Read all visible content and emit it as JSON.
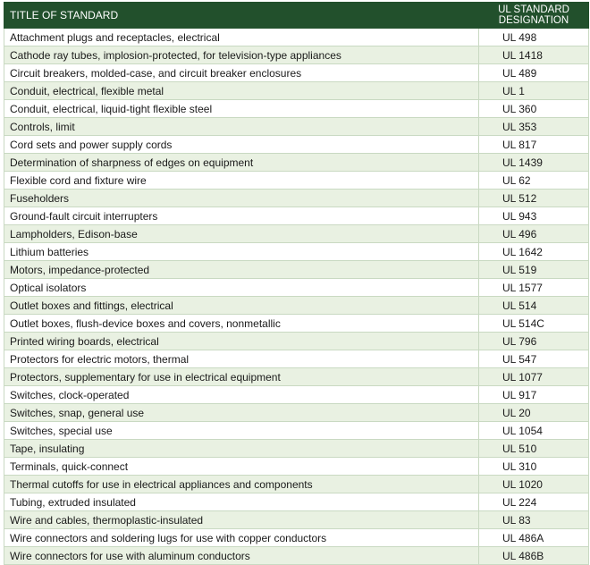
{
  "header": {
    "columns": [
      "TITLE OF STANDARD",
      "UL STANDARD DESIGNATION"
    ]
  },
  "table": {
    "rows": [
      [
        "Attachment plugs and receptacles, electrical",
        "UL 498"
      ],
      [
        "Cathode ray tubes, implosion-protected, for television-type appliances",
        "UL 1418"
      ],
      [
        "Circuit breakers, molded-case, and circuit breaker enclosures",
        "UL 489"
      ],
      [
        "Conduit, electrical, flexible metal",
        "UL 1"
      ],
      [
        "Conduit, electrical, liquid-tight flexible steel",
        "UL 360"
      ],
      [
        "Controls, limit",
        "UL 353"
      ],
      [
        "Cord sets and power supply cords",
        "UL 817"
      ],
      [
        "Determination of sharpness of edges on equipment",
        "UL 1439"
      ],
      [
        "Flexible cord and fixture wire",
        "UL 62"
      ],
      [
        "Fuseholders",
        "UL 512"
      ],
      [
        "Ground-fault circuit interrupters",
        "UL 943"
      ],
      [
        "Lampholders, Edison-base",
        "UL 496"
      ],
      [
        "Lithium batteries",
        "UL 1642"
      ],
      [
        "Motors, impedance-protected",
        "UL 519"
      ],
      [
        "Optical isolators",
        "UL 1577"
      ],
      [
        "Outlet boxes and fittings, electrical",
        "UL 514"
      ],
      [
        "Outlet boxes, flush-device boxes and covers, nonmetallic",
        "UL 514C"
      ],
      [
        "Printed wiring boards, electrical",
        "UL 796"
      ],
      [
        "Protectors for electric motors, thermal",
        "UL 547"
      ],
      [
        "Protectors, supplementary for use in electrical equipment",
        "UL 1077"
      ],
      [
        "Switches, clock-operated",
        "UL 917"
      ],
      [
        "Switches, snap, general use",
        "UL 20"
      ],
      [
        "Switches, special use",
        "UL 1054"
      ],
      [
        "Tape, insulating",
        "UL 510"
      ],
      [
        "Terminals, quick-connect",
        "UL 310"
      ],
      [
        "Thermal cutoffs for use in electrical appliances and components",
        "UL 1020"
      ],
      [
        "Tubing, extruded insulated",
        "UL 224"
      ],
      [
        "Wire and cables, thermoplastic-insulated",
        "UL 83"
      ],
      [
        "Wire connectors and soldering lugs for use with copper conductors",
        "UL 486A"
      ],
      [
        "Wire connectors for use with aluminum conductors",
        "UL 486B"
      ]
    ]
  }
}
